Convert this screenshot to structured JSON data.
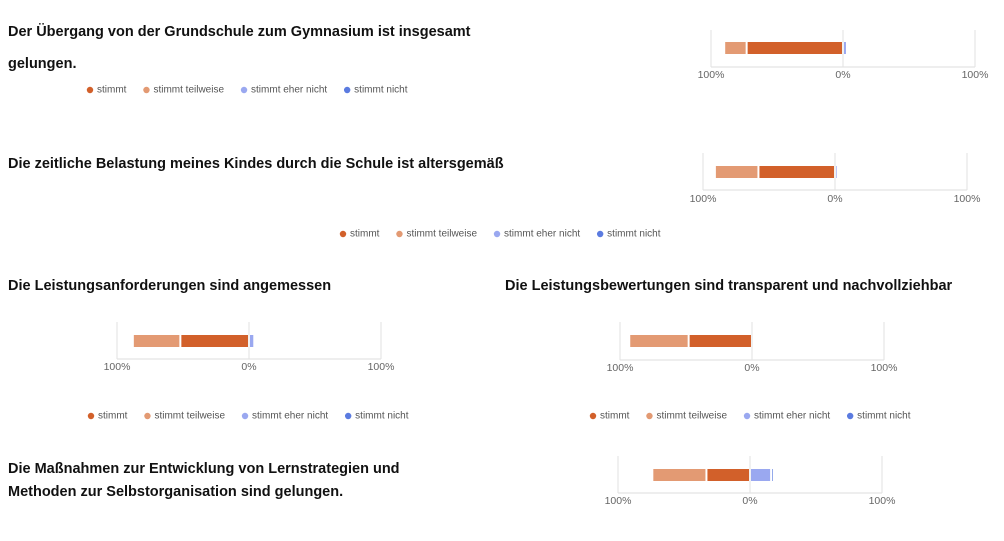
{
  "chart_data": [
    {
      "type": "diverging-bar",
      "title": "Der Übergang von der Grundschule zum Gymnasium ist insgesamt gelungen.",
      "series": [
        {
          "name": "stimmt",
          "color": "#d2602a",
          "values": [
            -73
          ]
        },
        {
          "name": "stimmt teilweise",
          "color": "#e39a73",
          "values": [
            -17
          ]
        },
        {
          "name": "stimmt eher nicht",
          "color": "#9aa8f0",
          "values": [
            3
          ]
        },
        {
          "name": "stimmt nicht",
          "color": "#5b7be0",
          "values": [
            1
          ]
        }
      ],
      "xlim": [
        -100,
        100
      ],
      "xticks": [
        {
          "value": -100,
          "label": "100%"
        },
        {
          "value": 0,
          "label": "0%"
        },
        {
          "value": 100,
          "label": "100%"
        }
      ]
    },
    {
      "type": "diverging-bar",
      "title": "Die zeitliche Belastung meines Kindes durch die Schule ist altersgemäß",
      "series": [
        {
          "name": "stimmt",
          "color": "#d2602a",
          "values": [
            -58
          ]
        },
        {
          "name": "stimmt teilweise",
          "color": "#e39a73",
          "values": [
            -33
          ]
        },
        {
          "name": "stimmt eher nicht",
          "color": "#9aa8f0",
          "values": [
            2
          ]
        },
        {
          "name": "stimmt nicht",
          "color": "#5b7be0",
          "values": [
            1
          ]
        }
      ],
      "xlim": [
        -100,
        100
      ],
      "xticks": [
        {
          "value": -100,
          "label": "100%"
        },
        {
          "value": 0,
          "label": "0%"
        },
        {
          "value": 100,
          "label": "100%"
        }
      ]
    },
    {
      "type": "diverging-bar",
      "title": "Die Leistungsanforderungen sind angemessen",
      "series": [
        {
          "name": "stimmt",
          "color": "#d2602a",
          "values": [
            -52
          ]
        },
        {
          "name": "stimmt teilweise",
          "color": "#e39a73",
          "values": [
            -36
          ]
        },
        {
          "name": "stimmt eher nicht",
          "color": "#9aa8f0",
          "values": [
            4
          ]
        },
        {
          "name": "stimmt nicht",
          "color": "#5b7be0",
          "values": [
            0
          ]
        }
      ],
      "xlim": [
        -100,
        100
      ],
      "xticks": [
        {
          "value": -100,
          "label": "100%"
        },
        {
          "value": 0,
          "label": "0%"
        },
        {
          "value": 100,
          "label": "100%"
        }
      ]
    },
    {
      "type": "diverging-bar",
      "title": "Die Leistungsbewertungen sind transparent und nachvollziehbar",
      "series": [
        {
          "name": "stimmt",
          "color": "#d2602a",
          "values": [
            -48
          ]
        },
        {
          "name": "stimmt teilweise",
          "color": "#e39a73",
          "values": [
            -45
          ]
        },
        {
          "name": "stimmt eher nicht",
          "color": "#9aa8f0",
          "values": [
            1
          ]
        },
        {
          "name": "stimmt nicht",
          "color": "#5b7be0",
          "values": [
            0
          ]
        }
      ],
      "xlim": [
        -100,
        100
      ],
      "xticks": [
        {
          "value": -100,
          "label": "100%"
        },
        {
          "value": 0,
          "label": "0%"
        },
        {
          "value": 100,
          "label": "100%"
        }
      ]
    },
    {
      "type": "diverging-bar",
      "title": "Die Maßnahmen zur Entwicklung von Lernstrategien und Methoden zur Selbstorganisation sind gelungen.",
      "series": [
        {
          "color": "#d2602a",
          "values": [
            -33
          ]
        },
        {
          "color": "#e39a73",
          "values": [
            -41
          ]
        },
        {
          "color": "#9aa8f0",
          "values": [
            16
          ]
        },
        {
          "color": "#5b7be0",
          "values": [
            2
          ]
        }
      ],
      "xlim": [
        -100,
        100
      ],
      "xticks": [
        {
          "value": -100,
          "label": "100%"
        },
        {
          "value": 0,
          "label": "0%"
        },
        {
          "value": 100,
          "label": "100%"
        }
      ]
    }
  ]
}
